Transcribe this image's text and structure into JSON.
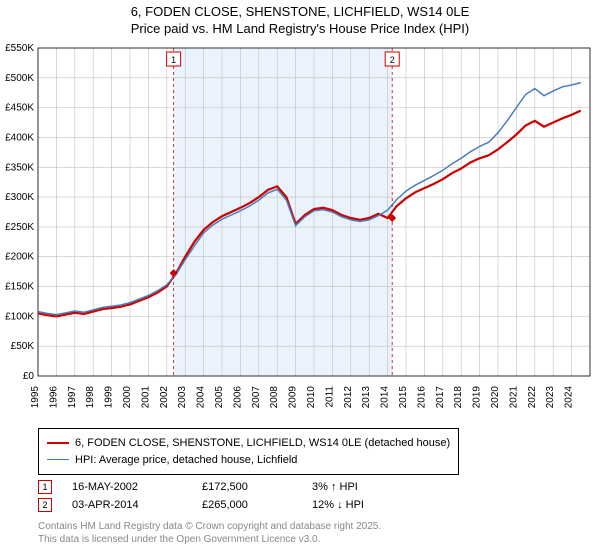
{
  "title_line1": "6, FODEN CLOSE, SHENSTONE, LICHFIELD, WS14 0LE",
  "title_line2": "Price paid vs. HM Land Registry's House Price Index (HPI)",
  "chart": {
    "type": "line",
    "background_color": "#ffffff",
    "shaded_color": "#eaf3fb",
    "grid_color": "#bfbfbf",
    "axis_color": "#000000",
    "x_years": [
      1995,
      1996,
      1997,
      1998,
      1999,
      2000,
      2001,
      2002,
      2003,
      2004,
      2005,
      2006,
      2007,
      2008,
      2009,
      2010,
      2011,
      2012,
      2013,
      2014,
      2015,
      2016,
      2017,
      2018,
      2019,
      2020,
      2021,
      2022,
      2023,
      2024
    ],
    "x_tick_fontsize": 10,
    "ylim": [
      0,
      550
    ],
    "ytick_step": 50,
    "ytick_labels": [
      "£0",
      "£50K",
      "£100K",
      "£150K",
      "£200K",
      "£250K",
      "£300K",
      "£350K",
      "£400K",
      "£450K",
      "£500K",
      "£550K"
    ],
    "y_tick_fontsize": 10,
    "shaded_xrange": [
      2002.37,
      2014.25
    ],
    "series": [
      {
        "name": "prop",
        "color": "#cc0000",
        "width": 2.2,
        "data_half_year": [
          105,
          102,
          100,
          103,
          106,
          104,
          108,
          112,
          114,
          116,
          120,
          126,
          132,
          140,
          150,
          172,
          200,
          225,
          245,
          258,
          268,
          275,
          282,
          290,
          300,
          312,
          318,
          300,
          255,
          270,
          280,
          282,
          278,
          270,
          265,
          262,
          265,
          272,
          265,
          285,
          298,
          308,
          315,
          322,
          330,
          340,
          348,
          358,
          365,
          370,
          380,
          392,
          405,
          420,
          428,
          418,
          425,
          432,
          438,
          445
        ]
      },
      {
        "name": "hpi",
        "color": "#4a7ebb",
        "width": 1.5,
        "data_half_year": [
          108,
          105,
          103,
          106,
          109,
          107,
          111,
          115,
          117,
          119,
          123,
          129,
          135,
          143,
          153,
          170,
          195,
          218,
          240,
          253,
          263,
          270,
          277,
          285,
          295,
          307,
          313,
          295,
          252,
          267,
          277,
          279,
          275,
          267,
          262,
          259,
          262,
          269,
          278,
          296,
          310,
          320,
          328,
          336,
          345,
          356,
          365,
          376,
          385,
          392,
          408,
          428,
          450,
          472,
          482,
          470,
          478,
          485,
          488,
          492
        ]
      }
    ],
    "sale_markers": [
      {
        "num": "1",
        "x_year": 2002.37,
        "y_value": 172.5,
        "box_color": "#cc0000"
      },
      {
        "num": "2",
        "x_year": 2014.25,
        "y_value": 265,
        "box_color": "#cc0000"
      }
    ]
  },
  "legend": {
    "items": [
      {
        "color": "#cc0000",
        "width": 2.2,
        "label": "6, FODEN CLOSE, SHENSTONE, LICHFIELD, WS14 0LE (detached house)"
      },
      {
        "color": "#4a7ebb",
        "width": 1.5,
        "label": "HPI: Average price, detached house, Lichfield"
      }
    ]
  },
  "sales": [
    {
      "num": "1",
      "date": "16-MAY-2002",
      "price": "£172,500",
      "pct": "3% ↑ HPI"
    },
    {
      "num": "2",
      "date": "03-APR-2014",
      "price": "£265,000",
      "pct": "12% ↓ HPI"
    }
  ],
  "attrib_line1": "Contains HM Land Registry data © Crown copyright and database right 2025.",
  "attrib_line2": "This data is licensed under the Open Government Licence v3.0."
}
